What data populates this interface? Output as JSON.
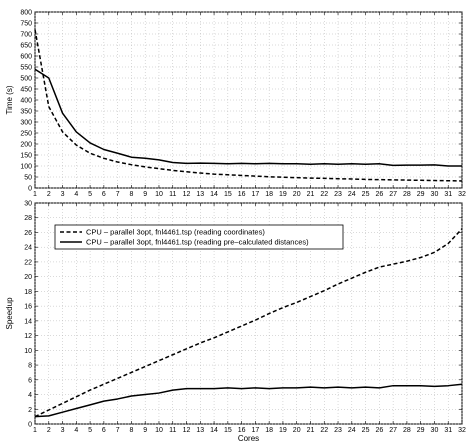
{
  "chart_data": [
    {
      "type": "line",
      "title": "",
      "xlabel": "",
      "ylabel": "Time (s)",
      "xlim": [
        1,
        32
      ],
      "ylim": [
        0,
        800
      ],
      "x_ticks": [
        1,
        2,
        3,
        4,
        5,
        6,
        7,
        8,
        9,
        10,
        11,
        12,
        13,
        14,
        15,
        16,
        17,
        18,
        19,
        20,
        21,
        22,
        23,
        24,
        25,
        26,
        27,
        28,
        29,
        30,
        31,
        32
      ],
      "y_ticks": [
        0,
        50,
        100,
        150,
        200,
        250,
        300,
        350,
        400,
        450,
        500,
        550,
        600,
        650,
        700,
        750,
        800
      ],
      "grid": true,
      "x": [
        1,
        2,
        3,
        4,
        5,
        6,
        7,
        8,
        9,
        10,
        11,
        12,
        13,
        14,
        15,
        16,
        17,
        18,
        19,
        20,
        21,
        22,
        23,
        24,
        25,
        26,
        27,
        28,
        29,
        30,
        31,
        32
      ],
      "series": [
        {
          "style": "dashed",
          "color": "#000000",
          "values": [
            720,
            370,
            255,
            195,
            158,
            135,
            118,
            106,
            96,
            88,
            80,
            74,
            68,
            63,
            60,
            57,
            54,
            51,
            49,
            47,
            45,
            44,
            42,
            41,
            39,
            38,
            37,
            36,
            35,
            34,
            33,
            32
          ]
        },
        {
          "style": "solid",
          "color": "#000000",
          "values": [
            540,
            500,
            340,
            255,
            205,
            175,
            158,
            140,
            135,
            128,
            116,
            112,
            113,
            112,
            110,
            112,
            110,
            112,
            110,
            110,
            108,
            110,
            108,
            110,
            108,
            110,
            103,
            104,
            104,
            105,
            100,
            100
          ]
        }
      ]
    },
    {
      "type": "line",
      "title": "",
      "xlabel": "Cores",
      "ylabel": "Speedup",
      "xlim": [
        1,
        32
      ],
      "ylim": [
        0,
        30
      ],
      "x_ticks": [
        1,
        2,
        3,
        4,
        5,
        6,
        7,
        8,
        9,
        10,
        11,
        12,
        13,
        14,
        15,
        16,
        17,
        18,
        19,
        20,
        21,
        22,
        23,
        24,
        25,
        26,
        27,
        28,
        29,
        30,
        31,
        32
      ],
      "y_ticks": [
        0,
        2,
        4,
        6,
        8,
        10,
        12,
        14,
        16,
        18,
        20,
        22,
        24,
        26,
        28,
        30
      ],
      "grid": true,
      "legend": {
        "position": "top-left",
        "entries": [
          {
            "label": "CPU – parallel 3opt, fnl4461.tsp (reading coordinates)",
            "style": "dashed"
          },
          {
            "label": "CPU – parallel 3opt, fnl4461.tsp (reading pre–calculated distances)",
            "style": "solid"
          }
        ]
      },
      "x": [
        1,
        2,
        3,
        4,
        5,
        6,
        7,
        8,
        9,
        10,
        11,
        12,
        13,
        14,
        15,
        16,
        17,
        18,
        19,
        20,
        21,
        22,
        23,
        24,
        25,
        26,
        27,
        28,
        29,
        30,
        31,
        32
      ],
      "series": [
        {
          "style": "dashed",
          "color": "#000000",
          "values": [
            1.0,
            1.9,
            2.8,
            3.7,
            4.6,
            5.4,
            6.2,
            7.0,
            7.8,
            8.6,
            9.4,
            10.2,
            11.0,
            11.7,
            12.5,
            13.3,
            14.1,
            15.0,
            15.8,
            16.5,
            17.3,
            18.1,
            19.0,
            19.8,
            20.6,
            21.3,
            21.7,
            22.1,
            22.6,
            23.3,
            24.5,
            26.5
          ]
        },
        {
          "style": "solid",
          "color": "#000000",
          "values": [
            1.0,
            1.1,
            1.6,
            2.1,
            2.6,
            3.1,
            3.4,
            3.8,
            4.0,
            4.2,
            4.6,
            4.8,
            4.8,
            4.8,
            4.9,
            4.8,
            4.9,
            4.8,
            4.9,
            4.9,
            5.0,
            4.9,
            5.0,
            4.9,
            5.0,
            4.9,
            5.2,
            5.2,
            5.2,
            5.1,
            5.2,
            5.4
          ]
        }
      ]
    }
  ]
}
